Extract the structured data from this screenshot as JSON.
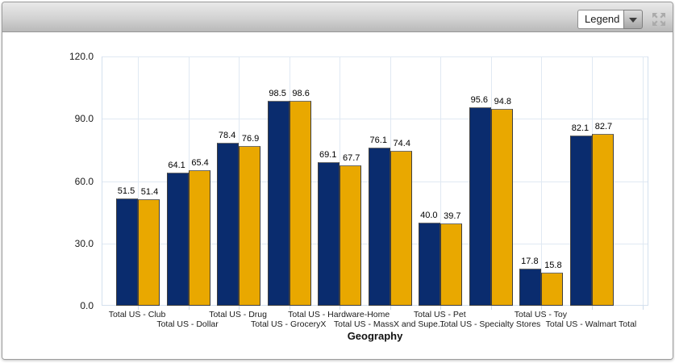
{
  "toolbar": {
    "legend_dropdown_value": "Legend",
    "icons": {
      "dropdown_arrow": "chevron-down-icon",
      "expand": "expand-arrows-icon"
    }
  },
  "colors": {
    "series_navy": "#0a2c6e",
    "series_gold": "#e9a800",
    "gridline": "#e0e9f3",
    "axis_line": "#cddcec",
    "toolbar_top": "#e9e9e9",
    "toolbar_bottom": "#b9b9b9"
  },
  "chart_data": {
    "type": "bar",
    "title": "",
    "xlabel": "Geography",
    "ylabel": "",
    "ylim": [
      0,
      120
    ],
    "grid": true,
    "legend_position": "collapsed-dropdown",
    "yticks": [
      0,
      30,
      60,
      90,
      120
    ],
    "ytick_labels": [
      "0.0",
      "30.0",
      "60.0",
      "90.0",
      "120.0"
    ],
    "categories": [
      "Total US - Club",
      "Total US - Dollar",
      "Total US - Drug",
      "Total US - GroceryX",
      "Total US - Hardware-Home",
      "Total US - MassX and Supe...",
      "Total US - Pet",
      "Total US - Specialty Stores",
      "Total US - Toy",
      "Total US - Walmart Total"
    ],
    "series": [
      {
        "name": "navy",
        "color": "#0a2c6e",
        "values": [
          51.5,
          64.1,
          78.4,
          98.5,
          69.1,
          76.1,
          40.0,
          95.6,
          17.8,
          82.1
        ]
      },
      {
        "name": "gold",
        "color": "#e9a800",
        "values": [
          51.4,
          65.4,
          76.9,
          98.6,
          67.7,
          74.4,
          39.7,
          94.8,
          15.8,
          82.7
        ]
      }
    ],
    "value_labels_shown": true
  }
}
